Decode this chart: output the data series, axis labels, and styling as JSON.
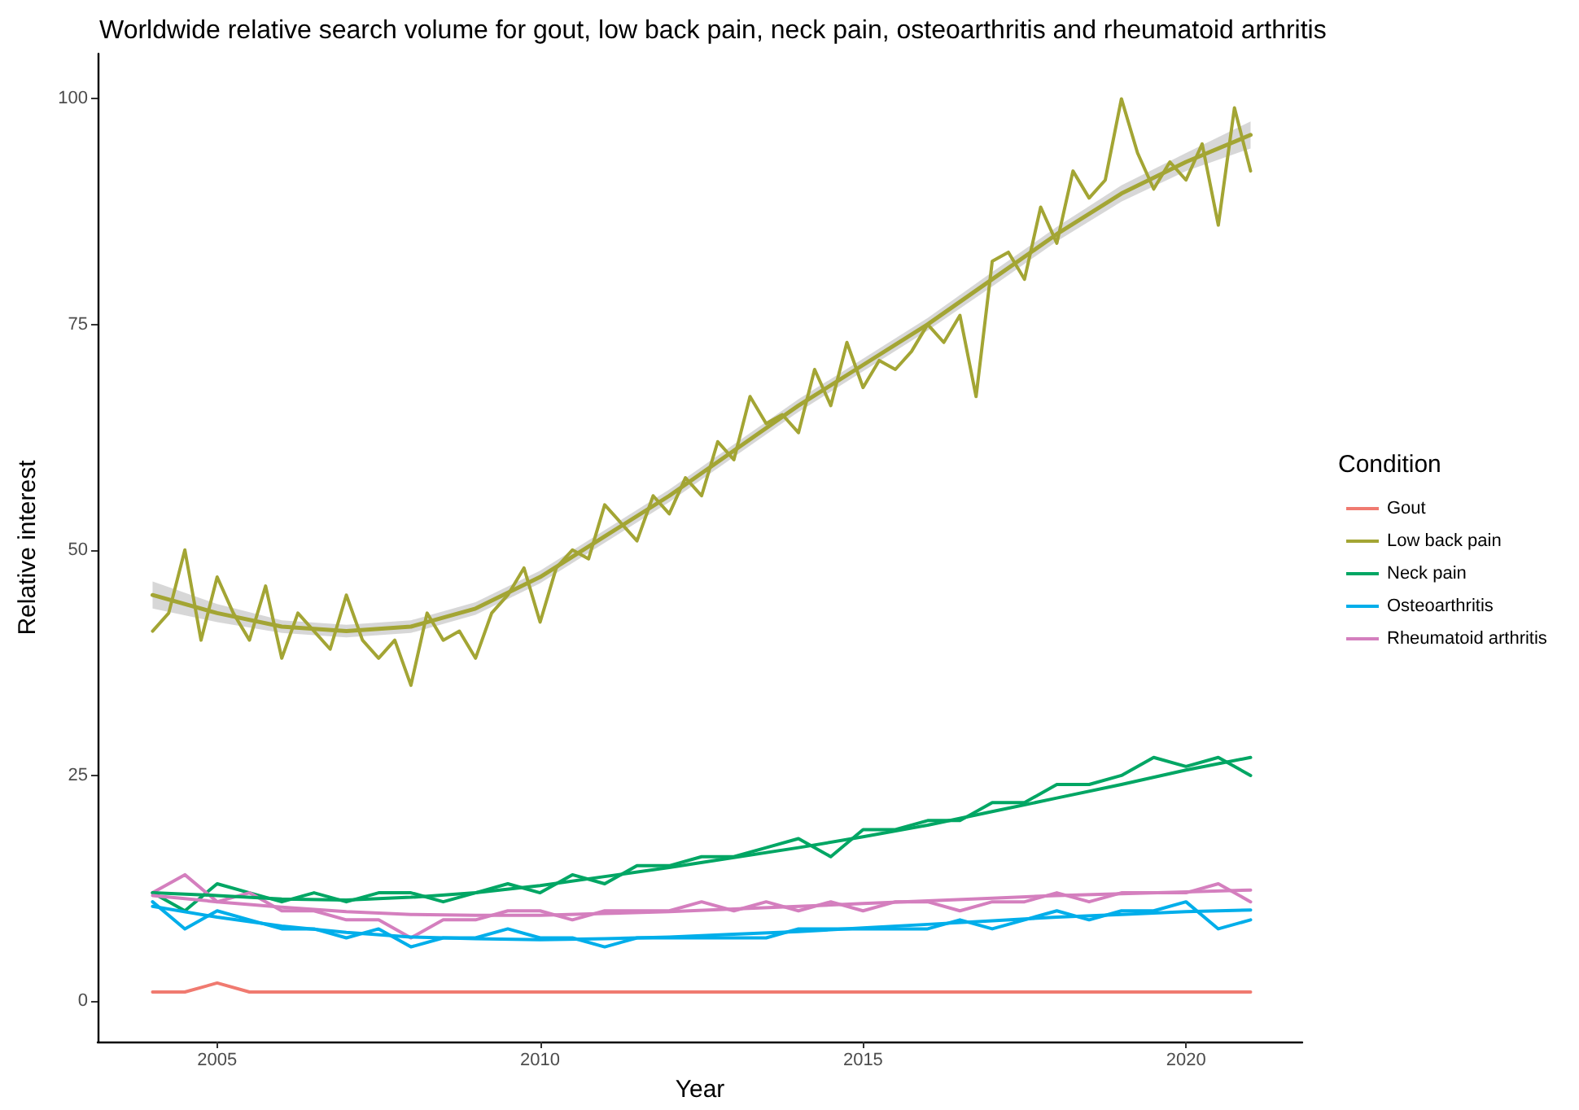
{
  "chart_data": {
    "type": "line",
    "title": "Worldwide relative search volume for gout, low back pain, neck pain, osteoarthritis and rheumatoid arthritis",
    "xlabel": "Year",
    "ylabel": "Relative interest",
    "legend_title": "Condition",
    "xlim": [
      2003.15,
      2021.8
    ],
    "xticks": [
      2005,
      2010,
      2015,
      2020
    ],
    "ylim": [
      -4.5,
      105
    ],
    "yticks": [
      0,
      25,
      50,
      75,
      100
    ],
    "grid": false,
    "legend": "right",
    "marker": "none",
    "series": [
      {
        "name": "Gout",
        "color": "#f07a70",
        "x": [
          2004,
          2004.5,
          2005,
          2005.5,
          2006,
          2006.5,
          2007,
          2007.5,
          2008,
          2008.5,
          2009,
          2009.5,
          2010,
          2010.5,
          2011,
          2011.5,
          2012,
          2012.5,
          2013,
          2013.5,
          2014,
          2014.5,
          2015,
          2015.5,
          2016,
          2016.5,
          2017,
          2017.5,
          2018,
          2018.5,
          2019,
          2019.5,
          2020,
          2020.5,
          2021
        ],
        "values": [
          1,
          1,
          2,
          1,
          1,
          1,
          1,
          1,
          1,
          1,
          1,
          1,
          1,
          1,
          1,
          1,
          1,
          1,
          1,
          1,
          1,
          1,
          1,
          1,
          1,
          1,
          1,
          1,
          1,
          1,
          1,
          1,
          1,
          1,
          1
        ]
      },
      {
        "name": "Low back pain",
        "color": "#a3a534",
        "x": [
          2004,
          2004.25,
          2004.5,
          2004.75,
          2005,
          2005.25,
          2005.5,
          2005.75,
          2006,
          2006.25,
          2006.5,
          2006.75,
          2007,
          2007.25,
          2007.5,
          2007.75,
          2008,
          2008.25,
          2008.5,
          2008.75,
          2009,
          2009.25,
          2009.5,
          2009.75,
          2010,
          2010.25,
          2010.5,
          2010.75,
          2011,
          2011.25,
          2011.5,
          2011.75,
          2012,
          2012.25,
          2012.5,
          2012.75,
          2013,
          2013.25,
          2013.5,
          2013.75,
          2014,
          2014.25,
          2014.5,
          2014.75,
          2015,
          2015.25,
          2015.5,
          2015.75,
          2016,
          2016.25,
          2016.5,
          2016.75,
          2017,
          2017.25,
          2017.5,
          2017.75,
          2018,
          2018.25,
          2018.5,
          2018.75,
          2019,
          2019.25,
          2019.5,
          2019.75,
          2020,
          2020.25,
          2020.5,
          2020.75,
          2021
        ],
        "values": [
          41,
          43,
          50,
          40,
          47,
          43,
          40,
          46,
          38,
          43,
          41,
          39,
          45,
          40,
          38,
          40,
          35,
          43,
          40,
          41,
          38,
          43,
          45,
          48,
          42,
          48,
          50,
          49,
          55,
          53,
          51,
          56,
          54,
          58,
          56,
          62,
          60,
          67,
          64,
          65,
          63,
          70,
          66,
          73,
          68,
          71,
          70,
          72,
          75,
          73,
          76,
          67,
          82,
          83,
          80,
          88,
          84,
          92,
          89,
          91,
          100,
          94,
          90,
          93,
          91,
          95,
          86,
          99,
          92
        ]
      },
      {
        "name": "Neck pain",
        "color": "#00a664",
        "x": [
          2004,
          2004.5,
          2005,
          2005.5,
          2006,
          2006.5,
          2007,
          2007.5,
          2008,
          2008.5,
          2009,
          2009.5,
          2010,
          2010.5,
          2011,
          2011.5,
          2012,
          2012.5,
          2013,
          2013.5,
          2014,
          2014.5,
          2015,
          2015.5,
          2016,
          2016.5,
          2017,
          2017.5,
          2018,
          2018.5,
          2019,
          2019.5,
          2020,
          2020.5,
          2021
        ],
        "values": [
          12,
          10,
          13,
          12,
          11,
          12,
          11,
          12,
          12,
          11,
          12,
          13,
          12,
          14,
          13,
          15,
          15,
          16,
          16,
          17,
          18,
          16,
          19,
          19,
          20,
          20,
          22,
          22,
          24,
          24,
          25,
          27,
          26,
          27,
          25
        ]
      },
      {
        "name": "Osteoarthritis",
        "color": "#00aeea",
        "x": [
          2004,
          2004.5,
          2005,
          2005.5,
          2006,
          2006.5,
          2007,
          2007.5,
          2008,
          2008.5,
          2009,
          2009.5,
          2010,
          2010.5,
          2011,
          2011.5,
          2012,
          2012.5,
          2013,
          2013.5,
          2014,
          2014.5,
          2015,
          2015.5,
          2016,
          2016.5,
          2017,
          2017.5,
          2018,
          2018.5,
          2019,
          2019.5,
          2020,
          2020.5,
          2021
        ],
        "values": [
          11,
          8,
          10,
          9,
          8,
          8,
          7,
          8,
          6,
          7,
          7,
          8,
          7,
          7,
          6,
          7,
          7,
          7,
          7,
          7,
          8,
          8,
          8,
          8,
          8,
          9,
          8,
          9,
          10,
          9,
          10,
          10,
          11,
          8,
          9
        ]
      },
      {
        "name": "Rheumatoid arthritis",
        "color": "#d47fbe",
        "x": [
          2004,
          2004.5,
          2005,
          2005.5,
          2006,
          2006.5,
          2007,
          2007.5,
          2008,
          2008.5,
          2009,
          2009.5,
          2010,
          2010.5,
          2011,
          2011.5,
          2012,
          2012.5,
          2013,
          2013.5,
          2014,
          2014.5,
          2015,
          2015.5,
          2016,
          2016.5,
          2017,
          2017.5,
          2018,
          2018.5,
          2019,
          2019.5,
          2020,
          2020.5,
          2021
        ],
        "values": [
          12,
          14,
          11,
          12,
          10,
          10,
          9,
          9,
          7,
          9,
          9,
          10,
          10,
          9,
          10,
          10,
          10,
          11,
          10,
          11,
          10,
          11,
          10,
          11,
          11,
          10,
          11,
          11,
          12,
          11,
          12,
          12,
          12,
          13,
          11
        ]
      },
      {
        "color": "#a3a534",
        "x": [
          2004,
          2005,
          2006,
          2007,
          2008,
          2009,
          2010,
          2011,
          2012,
          2013,
          2014,
          2015,
          2016,
          2017,
          2018,
          2019,
          2020,
          2021
        ],
        "values": [
          45,
          43,
          41.5,
          41,
          41.5,
          43.5,
          47,
          51.5,
          56,
          61,
          66,
          70.5,
          75,
          80,
          85,
          89.5,
          93,
          96
        ],
        "lower": [
          43.5,
          42,
          40.8,
          40.3,
          40.8,
          42.8,
          46.3,
          50.8,
          55.3,
          60.3,
          65.3,
          69.8,
          74.3,
          79.2,
          84.2,
          88.6,
          92,
          94.5
        ],
        "upper": [
          46.5,
          44,
          42.2,
          41.7,
          42.2,
          44.2,
          47.7,
          52.2,
          56.7,
          61.7,
          66.7,
          71.2,
          75.7,
          80.8,
          85.8,
          90.4,
          94,
          97.5
        ]
      },
      {
        "color": "#00a664",
        "x": [
          2004,
          2005,
          2006,
          2007,
          2008,
          2009,
          2010,
          2011,
          2012,
          2013,
          2014,
          2015,
          2016,
          2017,
          2018,
          2019,
          2020,
          2021
        ],
        "values": [
          12,
          11.7,
          11.3,
          11.2,
          11.5,
          12,
          12.8,
          13.8,
          14.8,
          15.9,
          17,
          18.2,
          19.5,
          21,
          22.5,
          24,
          25.6,
          27
        ]
      },
      {
        "color": "#00aeea",
        "x": [
          2004,
          2005,
          2006,
          2007,
          2008,
          2009,
          2010,
          2011,
          2012,
          2013,
          2014,
          2015,
          2016,
          2017,
          2018,
          2019,
          2020,
          2021
        ],
        "values": [
          10.5,
          9.3,
          8.3,
          7.6,
          7.1,
          6.9,
          6.8,
          6.9,
          7.1,
          7.4,
          7.7,
          8.1,
          8.5,
          8.9,
          9.3,
          9.6,
          9.9,
          10.1
        ]
      },
      {
        "color": "#d47fbe",
        "x": [
          2004,
          2005,
          2006,
          2007,
          2008,
          2009,
          2010,
          2011,
          2012,
          2013,
          2014,
          2015,
          2016,
          2017,
          2018,
          2019,
          2020,
          2021
        ],
        "values": [
          11.7,
          11,
          10.4,
          9.9,
          9.6,
          9.5,
          9.5,
          9.7,
          9.9,
          10.2,
          10.5,
          10.8,
          11.1,
          11.4,
          11.7,
          11.9,
          12.1,
          12.3
        ]
      }
    ]
  }
}
